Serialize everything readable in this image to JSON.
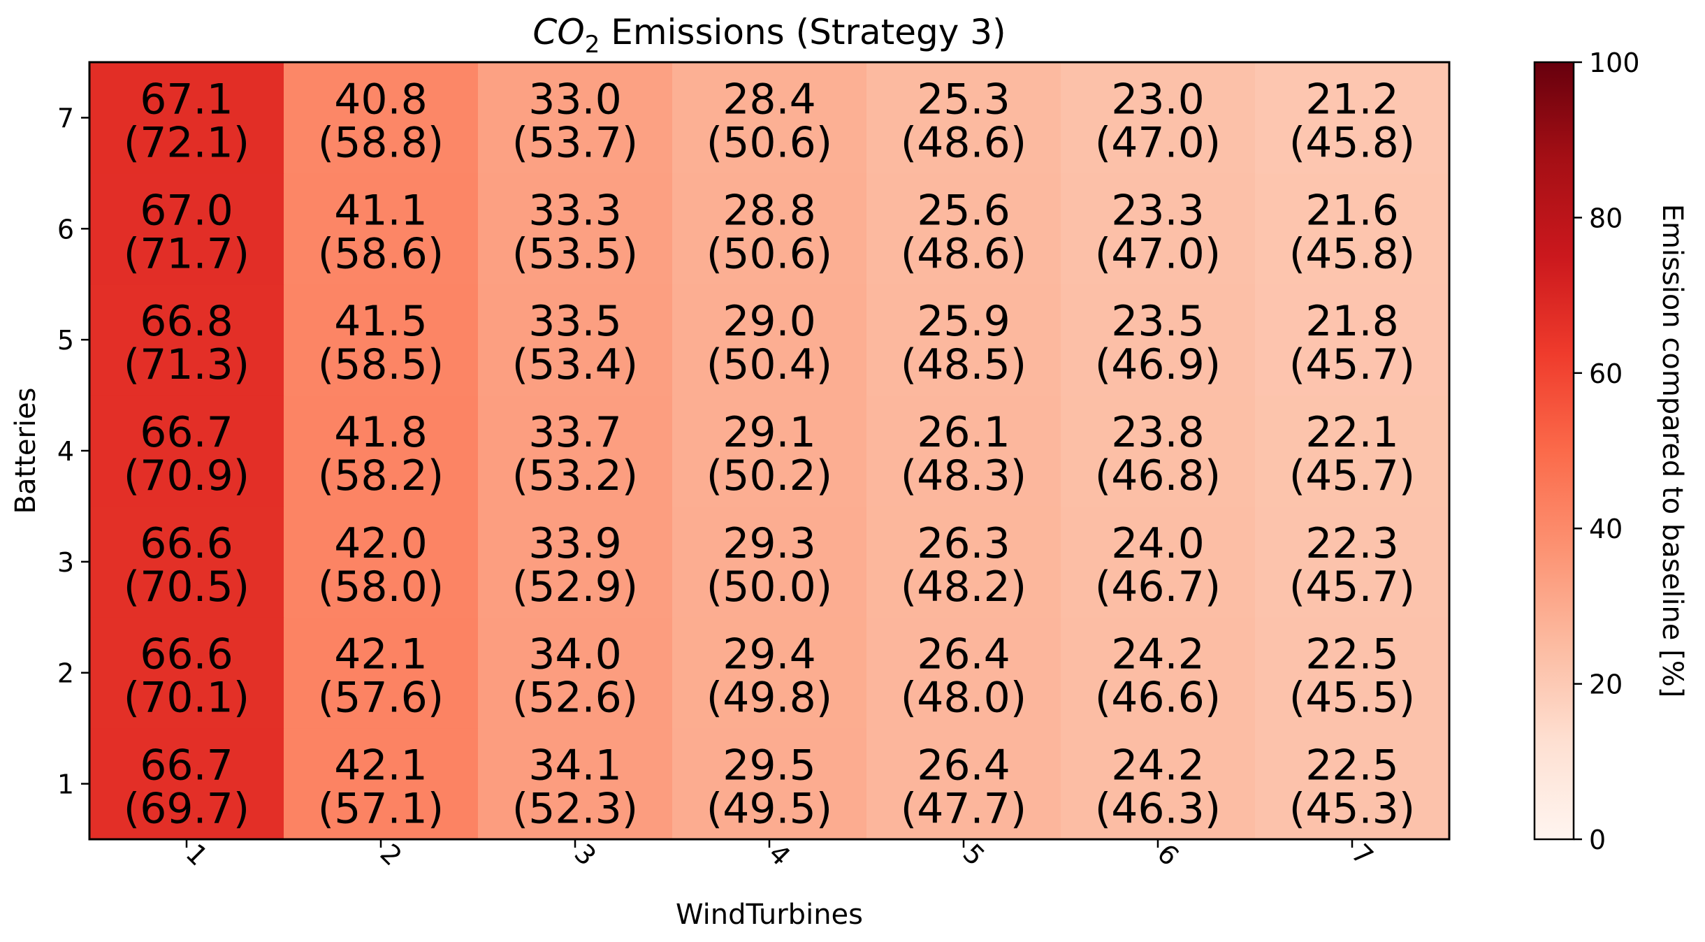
{
  "chart_data": {
    "type": "heatmap",
    "title_main": "CO",
    "title_sub": "2",
    "title_rest": " Emissions (Strategy 3)",
    "xlabel": "WindTurbines",
    "ylabel": "Batteries",
    "x_categories": [
      "1",
      "2",
      "3",
      "4",
      "5",
      "6",
      "7"
    ],
    "y_categories": [
      "1",
      "2",
      "3",
      "4",
      "5",
      "6",
      "7"
    ],
    "colormap": "Reds",
    "color_range": [
      0,
      100
    ],
    "colorbar": {
      "label": "Emission compared to baseline [%]",
      "ticks": [
        "0",
        "20",
        "40",
        "60",
        "80",
        "100"
      ]
    },
    "rows": [
      {
        "battery": "1",
        "values": [
          66.7,
          42.1,
          34.1,
          29.5,
          26.4,
          24.2,
          22.5
        ],
        "secondary": [
          69.7,
          57.1,
          52.3,
          49.5,
          47.7,
          46.3,
          45.3
        ]
      },
      {
        "battery": "2",
        "values": [
          66.6,
          42.1,
          34.0,
          29.4,
          26.4,
          24.2,
          22.5
        ],
        "secondary": [
          70.1,
          57.6,
          52.6,
          49.8,
          48.0,
          46.6,
          45.5
        ]
      },
      {
        "battery": "3",
        "values": [
          66.6,
          42.0,
          33.9,
          29.3,
          26.3,
          24.0,
          22.3
        ],
        "secondary": [
          70.5,
          58.0,
          52.9,
          50.0,
          48.2,
          46.7,
          45.7
        ]
      },
      {
        "battery": "4",
        "values": [
          66.7,
          41.8,
          33.7,
          29.1,
          26.1,
          23.8,
          22.1
        ],
        "secondary": [
          70.9,
          58.2,
          53.2,
          50.2,
          48.3,
          46.8,
          45.7
        ]
      },
      {
        "battery": "5",
        "values": [
          66.8,
          41.5,
          33.5,
          29.0,
          25.9,
          23.5,
          21.8
        ],
        "secondary": [
          71.3,
          58.5,
          53.4,
          50.4,
          48.5,
          46.9,
          45.7
        ]
      },
      {
        "battery": "6",
        "values": [
          67.0,
          41.1,
          33.3,
          28.8,
          25.6,
          23.3,
          21.6
        ],
        "secondary": [
          71.7,
          58.6,
          53.5,
          50.6,
          48.6,
          47.0,
          45.8
        ]
      },
      {
        "battery": "7",
        "values": [
          67.1,
          40.8,
          33.0,
          28.4,
          25.3,
          23.0,
          21.2
        ],
        "secondary": [
          72.1,
          58.8,
          53.7,
          50.6,
          48.6,
          47.0,
          45.8
        ]
      }
    ]
  }
}
